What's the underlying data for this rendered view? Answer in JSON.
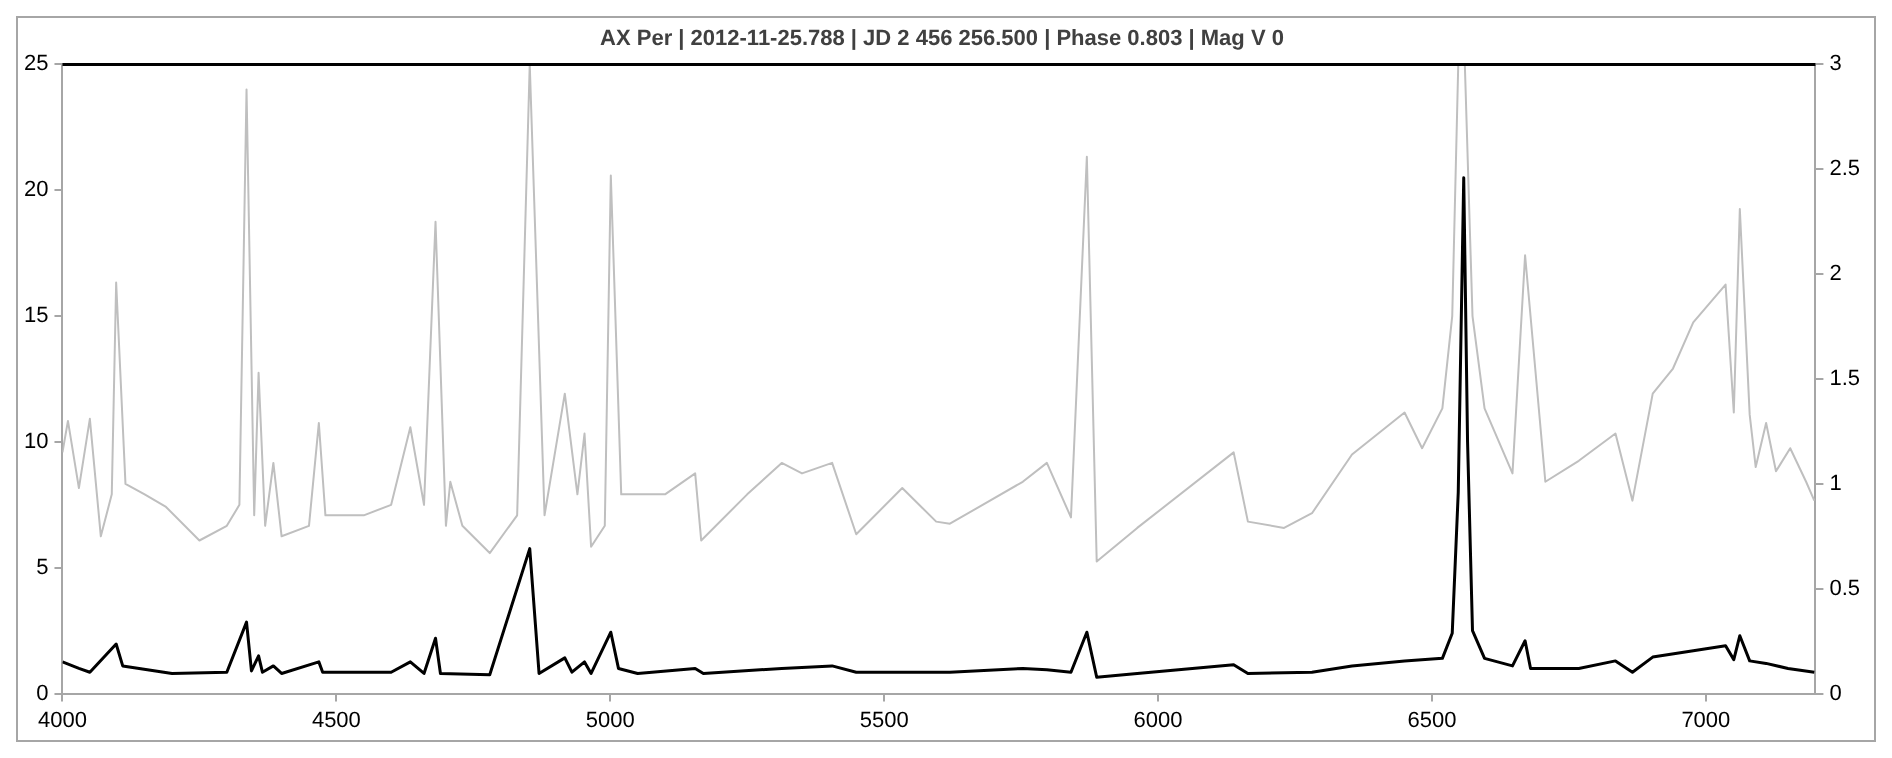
{
  "chart_data": {
    "type": "line",
    "title": "AX Per | 2012-11-25.788 | JD 2 456 256.500 | Phase 0.803 | Mag V 0",
    "xlim": [
      4000,
      7200
    ],
    "xticks": [
      4000,
      4500,
      5000,
      5500,
      6000,
      6500,
      7000
    ],
    "ylim": [
      0,
      25
    ],
    "yticks": [
      0,
      5,
      10,
      15,
      20,
      25
    ],
    "y2lim": [
      0,
      3
    ],
    "y2ticks": [
      0,
      0.5,
      1,
      1.5,
      2,
      2.5,
      3
    ],
    "grid": false,
    "legend": false,
    "series": [
      {
        "color": "#bfbfbf",
        "axis": "y2",
        "x": [
          4000,
          4010,
          4030,
          4050,
          4070,
          4090,
          4098,
          4115,
          4150,
          4189,
          4250,
          4300,
          4323,
          4336,
          4350,
          4358,
          4370,
          4385,
          4400,
          4450,
          4468,
          4480,
          4550,
          4600,
          4635,
          4660,
          4681,
          4700,
          4708,
          4730,
          4780,
          4830,
          4853,
          4880,
          4917,
          4940,
          4953,
          4965,
          4990,
          5001,
          5020,
          5050,
          5100,
          5155,
          5166,
          5250,
          5313,
          5350,
          5405,
          5449,
          5533,
          5595,
          5620,
          5753,
          5797,
          5841,
          5870,
          5888,
          5962,
          6138,
          6164,
          6230,
          6281,
          6354,
          6450,
          6482,
          6519,
          6537,
          6548,
          6560,
          6574,
          6596,
          6647,
          6670,
          6707,
          6768,
          6835,
          6866,
          6903,
          6940,
          6977,
          7036,
          7051,
          7062,
          7080,
          7091,
          7110,
          7128,
          7154,
          7183,
          7198
        ],
        "values": [
          1.15,
          1.3,
          0.98,
          1.31,
          0.75,
          0.95,
          1.96,
          1.0,
          0.95,
          0.89,
          0.73,
          0.8,
          0.9,
          2.88,
          0.85,
          1.53,
          0.8,
          1.1,
          0.75,
          0.8,
          1.29,
          0.85,
          0.85,
          0.9,
          1.27,
          0.9,
          2.25,
          0.8,
          1.01,
          0.8,
          0.67,
          0.85,
          3,
          0.85,
          1.43,
          0.95,
          1.24,
          0.7,
          0.8,
          2.47,
          0.95,
          0.95,
          0.95,
          1.05,
          0.73,
          0.95,
          1.1,
          1.05,
          1.1,
          0.76,
          0.98,
          0.82,
          0.81,
          1.01,
          1.1,
          0.84,
          2.56,
          0.63,
          0.79,
          1.15,
          0.82,
          0.79,
          0.86,
          1.14,
          1.34,
          1.17,
          1.36,
          1.8,
          3,
          3,
          1.8,
          1.36,
          1.05,
          2.09,
          1.01,
          1.11,
          1.24,
          0.92,
          1.43,
          1.55,
          1.77,
          1.95,
          1.34,
          2.31,
          1.33,
          1.08,
          1.29,
          1.06,
          1.17,
          1.01,
          0.92
        ]
      },
      {
        "color": "#000000",
        "x": [
          4000,
          4030,
          4050,
          4098,
          4110,
          4200,
          4300,
          4336,
          4345,
          4358,
          4365,
          4385,
          4400,
          4468,
          4475,
          4600,
          4635,
          4660,
          4681,
          4690,
          4780,
          4853,
          4870,
          4917,
          4930,
          4953,
          4965,
          5001,
          5015,
          5050,
          5155,
          5170,
          5313,
          5405,
          5449,
          5620,
          5753,
          5797,
          5841,
          5870,
          5888,
          5962,
          6138,
          6164,
          6281,
          6354,
          6450,
          6519,
          6537,
          6548,
          6558,
          6565,
          6574,
          6596,
          6647,
          6670,
          6680,
          6768,
          6835,
          6866,
          6903,
          6977,
          7036,
          7051,
          7062,
          7080,
          7110,
          7150,
          7198
        ],
        "values": [
          1.26,
          1.0,
          0.85,
          1.97,
          1.1,
          0.8,
          0.85,
          2.84,
          0.9,
          1.5,
          0.85,
          1.1,
          0.8,
          1.26,
          0.85,
          0.85,
          1.26,
          0.8,
          2.2,
          0.8,
          0.75,
          5.76,
          0.8,
          1.42,
          0.85,
          1.26,
          0.8,
          2.44,
          1.0,
          0.8,
          1.0,
          0.8,
          1.0,
          1.1,
          0.85,
          0.85,
          1.0,
          0.95,
          0.85,
          2.44,
          0.65,
          0.8,
          1.15,
          0.8,
          0.85,
          1.1,
          1.3,
          1.4,
          2.4,
          8.0,
          20.5,
          10,
          2.5,
          1.4,
          1.1,
          2.1,
          1.0,
          1.0,
          1.3,
          0.85,
          1.45,
          1.7,
          1.9,
          1.35,
          2.3,
          1.3,
          1.2,
          1.0,
          0.85
        ]
      }
    ]
  }
}
